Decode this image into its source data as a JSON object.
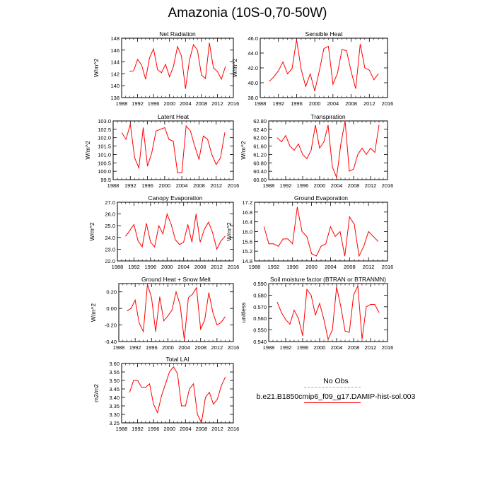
{
  "page": {
    "title": "Amazonia (10S-0,70-50W)"
  },
  "colors": {
    "model": "#ff0000",
    "obs": "#99a3cc",
    "axis": "#000000"
  },
  "legend": {
    "items": [
      {
        "label": "No Obs",
        "color": "#99a3cc",
        "style": "dashed"
      },
      {
        "label": "b.e21.B1850cmip6_f09_g17.DAMIP-hist-sol.003",
        "color": "#ff0000",
        "style": "solid"
      }
    ]
  },
  "chart_data": [
    {
      "type": "line",
      "title": "Net Radiation",
      "ylabel": "W/m^2",
      "xlim": [
        1988,
        2016
      ],
      "ylim": [
        138,
        148
      ],
      "xticks": [
        1988,
        1992,
        1996,
        2000,
        2004,
        2008,
        2012,
        2016
      ],
      "yticks": [
        138,
        140,
        142,
        144,
        146,
        148
      ],
      "ytick_labels": [
        "138",
        "140",
        "142",
        "144",
        "146",
        "148"
      ],
      "x": [
        1990,
        1991,
        1992,
        1993,
        1994,
        1995,
        1996,
        1997,
        1998,
        1999,
        2000,
        2001,
        2002,
        2003,
        2004,
        2005,
        2006,
        2007,
        2008,
        2009,
        2010,
        2011,
        2012,
        2013,
        2014
      ],
      "series": [
        {
          "values": [
            142.4,
            142.5,
            144.4,
            143.5,
            141.1,
            144.7,
            146.2,
            142.7,
            142.2,
            143.6,
            141.5,
            143.3,
            146.6,
            145.0,
            139.5,
            144.3,
            146.9,
            146.0,
            141.8,
            141.2,
            147.2,
            143.0,
            142.4,
            141.1,
            143.2
          ]
        }
      ]
    },
    {
      "type": "line",
      "title": "Sensible Heat",
      "ylabel": "W/m^2",
      "xlim": [
        1988,
        2016
      ],
      "ylim": [
        38,
        46
      ],
      "xticks": [
        1988,
        1992,
        1996,
        2000,
        2004,
        2008,
        2012,
        2016
      ],
      "yticks": [
        38,
        40,
        42,
        44,
        46
      ],
      "ytick_labels": [
        "38.0",
        "40.0",
        "42.0",
        "44.0",
        "46.0"
      ],
      "x": [
        1990,
        1991,
        1992,
        1993,
        1994,
        1995,
        1996,
        1997,
        1998,
        1999,
        2000,
        2001,
        2002,
        2003,
        2004,
        2005,
        2006,
        2007,
        2008,
        2009,
        2010,
        2011,
        2012,
        2013,
        2014
      ],
      "series": [
        {
          "values": [
            40.2,
            40.8,
            41.6,
            42.8,
            41.2,
            41.9,
            45.8,
            41.8,
            39.5,
            41.2,
            38.9,
            41.6,
            44.6,
            44.9,
            39.8,
            41.3,
            44.5,
            44.3,
            41.5,
            39.2,
            45.2,
            42.0,
            41.7,
            40.4,
            41.2
          ]
        }
      ]
    },
    {
      "type": "line",
      "title": "Latent Heat",
      "ylabel": "W/m^2",
      "xlim": [
        1988,
        2016
      ],
      "ylim": [
        99.5,
        103.0
      ],
      "xticks": [
        1988,
        1992,
        1996,
        2000,
        2004,
        2008,
        2012,
        2016
      ],
      "yticks": [
        99.5,
        100.0,
        100.5,
        101.0,
        101.5,
        102.0,
        102.5,
        103.0
      ],
      "ytick_labels": [
        "99.5",
        "100.0",
        "100.5",
        "101.0",
        "101.5",
        "102.0",
        "102.5",
        "103.0"
      ],
      "x": [
        1990,
        1991,
        1992,
        1993,
        1994,
        1995,
        1996,
        1997,
        1998,
        1999,
        2000,
        2001,
        2002,
        2003,
        2004,
        2005,
        2006,
        2007,
        2008,
        2009,
        2010,
        2011,
        2012,
        2013,
        2014
      ],
      "series": [
        {
          "values": [
            102.3,
            101.9,
            102.8,
            100.8,
            100.2,
            102.6,
            100.3,
            101.1,
            102.4,
            102.5,
            102.6,
            101.9,
            101.8,
            99.9,
            99.9,
            102.7,
            102.4,
            101.5,
            100.7,
            102.1,
            101.9,
            101.0,
            100.4,
            100.8,
            102.3
          ]
        }
      ]
    },
    {
      "type": "line",
      "title": "Transpiration",
      "ylabel": "W/m^2",
      "xlim": [
        1988,
        2016
      ],
      "ylim": [
        60.0,
        62.8
      ],
      "xticks": [
        1988,
        1992,
        1996,
        2000,
        2004,
        2008,
        2012,
        2016
      ],
      "yticks": [
        60.0,
        60.4,
        60.8,
        61.2,
        61.6,
        62.0,
        62.4,
        62.8
      ],
      "ytick_labels": [
        "60.00",
        "60.40",
        "60.80",
        "61.20",
        "61.60",
        "62.00",
        "62.40",
        "62.80"
      ],
      "x": [
        1990,
        1991,
        1992,
        1993,
        1994,
        1995,
        1996,
        1997,
        1998,
        1999,
        2000,
        2001,
        2002,
        2003,
        2004,
        2005,
        2006,
        2007,
        2008,
        2009,
        2010,
        2011,
        2012,
        2013,
        2014
      ],
      "series": [
        {
          "values": [
            62.0,
            61.8,
            62.1,
            61.6,
            61.4,
            61.7,
            61.2,
            61.0,
            61.4,
            62.6,
            61.5,
            61.8,
            62.6,
            60.6,
            60.1,
            61.7,
            62.8,
            60.4,
            60.5,
            61.2,
            61.5,
            61.2,
            61.5,
            61.3,
            62.6
          ]
        }
      ]
    },
    {
      "type": "line",
      "title": "Canopy Evaporation",
      "ylabel": "W/m^2",
      "xlim": [
        1988,
        2016
      ],
      "ylim": [
        22,
        27
      ],
      "xticks": [
        1988,
        1992,
        1996,
        2000,
        2004,
        2008,
        2012,
        2016
      ],
      "yticks": [
        22,
        23,
        24,
        25,
        26,
        27
      ],
      "ytick_labels": [
        "22.0",
        "23.0",
        "24.0",
        "25.0",
        "26.0",
        "27.0"
      ],
      "x": [
        1990,
        1991,
        1992,
        1993,
        1994,
        1995,
        1996,
        1997,
        1998,
        1999,
        2000,
        2001,
        2002,
        2003,
        2004,
        2005,
        2006,
        2007,
        2008,
        2009,
        2010,
        2011,
        2012,
        2013,
        2014
      ],
      "series": [
        {
          "values": [
            24.1,
            24.6,
            25.1,
            23.7,
            23.2,
            25.2,
            23.6,
            23.2,
            25.0,
            24.3,
            26.0,
            25.1,
            23.8,
            23.4,
            23.6,
            25.1,
            23.6,
            26.0,
            23.6,
            24.7,
            25.3,
            24.4,
            23.0,
            23.7,
            24.1
          ]
        }
      ]
    },
    {
      "type": "line",
      "title": "Ground Evaporation",
      "ylabel": "W/m^2",
      "xlim": [
        1988,
        2016
      ],
      "ylim": [
        14.8,
        17.2
      ],
      "xticks": [
        1988,
        1992,
        1996,
        2000,
        2004,
        2008,
        2012,
        2016
      ],
      "yticks": [
        14.8,
        15.2,
        15.6,
        16.0,
        16.4,
        16.8,
        17.2
      ],
      "ytick_labels": [
        "14.8",
        "15.2",
        "15.6",
        "16.0",
        "16.4",
        "16.8",
        "17.2"
      ],
      "x": [
        1990,
        1991,
        1992,
        1993,
        1994,
        1995,
        1996,
        1997,
        1998,
        1999,
        2000,
        2001,
        2002,
        2003,
        2004,
        2005,
        2006,
        2007,
        2008,
        2009,
        2010,
        2011,
        2012,
        2013,
        2014
      ],
      "series": [
        {
          "values": [
            16.2,
            15.5,
            15.5,
            15.4,
            15.7,
            15.7,
            15.5,
            17.0,
            16.0,
            15.8,
            15.1,
            15.0,
            15.4,
            15.5,
            16.2,
            15.8,
            16.0,
            15.0,
            16.6,
            16.3,
            15.0,
            15.4,
            16.0,
            15.8,
            15.6
          ]
        }
      ]
    },
    {
      "type": "line",
      "title": "Ground Heat + Snow Melt",
      "ylabel": "W/m^2",
      "xlim": [
        1988,
        2016
      ],
      "ylim": [
        -0.4,
        0.3
      ],
      "xticks": [
        1988,
        1992,
        1996,
        2000,
        2004,
        2008,
        2012,
        2016
      ],
      "yticks": [
        -0.4,
        -0.2,
        0.0,
        0.2
      ],
      "ytick_labels": [
        "-0.40",
        "-0.20",
        "0.00",
        "0.20"
      ],
      "x": [
        1990,
        1991,
        1992,
        1993,
        1994,
        1995,
        1996,
        1997,
        1998,
        1999,
        2000,
        2001,
        2002,
        2003,
        2004,
        2005,
        2006,
        2007,
        2008,
        2009,
        2010,
        2011,
        2012,
        2013,
        2014
      ],
      "series": [
        {
          "values": [
            -0.03,
            0.0,
            0.1,
            -0.18,
            -0.28,
            0.29,
            0.13,
            -0.28,
            0.14,
            -0.15,
            -0.09,
            -0.02,
            0.2,
            0.04,
            -0.38,
            0.13,
            0.17,
            0.25,
            -0.25,
            -0.14,
            0.19,
            -0.05,
            -0.2,
            -0.17,
            -0.1
          ]
        }
      ]
    },
    {
      "type": "line",
      "title": "Soil moisture factor (BTRAN or BTRANMN)",
      "ylabel": "unitless",
      "xlim": [
        1988,
        2016
      ],
      "ylim": [
        0.54,
        0.59
      ],
      "xticks": [
        1988,
        1992,
        1996,
        2000,
        2004,
        2008,
        2012,
        2016
      ],
      "yticks": [
        0.54,
        0.55,
        0.56,
        0.57,
        0.58,
        0.59
      ],
      "ytick_labels": [
        "0.540",
        "0.550",
        "0.560",
        "0.570",
        "0.580",
        "0.590"
      ],
      "x": [
        1990,
        1991,
        1992,
        1993,
        1994,
        1995,
        1996,
        1997,
        1998,
        1999,
        2000,
        2001,
        2002,
        2003,
        2004,
        2005,
        2006,
        2007,
        2008,
        2009,
        2010,
        2011,
        2012,
        2013,
        2014
      ],
      "series": [
        {
          "values": [
            0.574,
            0.565,
            0.559,
            0.555,
            0.567,
            0.56,
            0.545,
            0.585,
            0.58,
            0.563,
            0.573,
            0.559,
            0.542,
            0.55,
            0.587,
            0.57,
            0.549,
            0.548,
            0.58,
            0.588,
            0.542,
            0.57,
            0.572,
            0.572,
            0.565
          ]
        }
      ]
    },
    {
      "type": "line",
      "title": "Total LAI",
      "ylabel": "m2/m2",
      "xlim": [
        1988,
        2016
      ],
      "ylim": [
        3.25,
        3.6
      ],
      "xticks": [
        1988,
        1992,
        1996,
        2000,
        2004,
        2008,
        2012,
        2016
      ],
      "yticks": [
        3.25,
        3.3,
        3.35,
        3.4,
        3.45,
        3.5,
        3.55,
        3.6
      ],
      "ytick_labels": [
        "3.25",
        "3.30",
        "3.35",
        "3.40",
        "3.45",
        "3.50",
        "3.55",
        "3.60"
      ],
      "x": [
        1990,
        1991,
        1992,
        1993,
        1994,
        1995,
        1996,
        1997,
        1998,
        1999,
        2000,
        2001,
        2002,
        2003,
        2004,
        2005,
        2006,
        2007,
        2008,
        2009,
        2010,
        2011,
        2012,
        2013,
        2014
      ],
      "series": [
        {
          "values": [
            3.43,
            3.5,
            3.5,
            3.46,
            3.46,
            3.48,
            3.36,
            3.31,
            3.41,
            3.48,
            3.55,
            3.58,
            3.54,
            3.35,
            3.35,
            3.45,
            3.48,
            3.3,
            3.25,
            3.4,
            3.43,
            3.36,
            3.39,
            3.47,
            3.52
          ]
        }
      ]
    }
  ]
}
